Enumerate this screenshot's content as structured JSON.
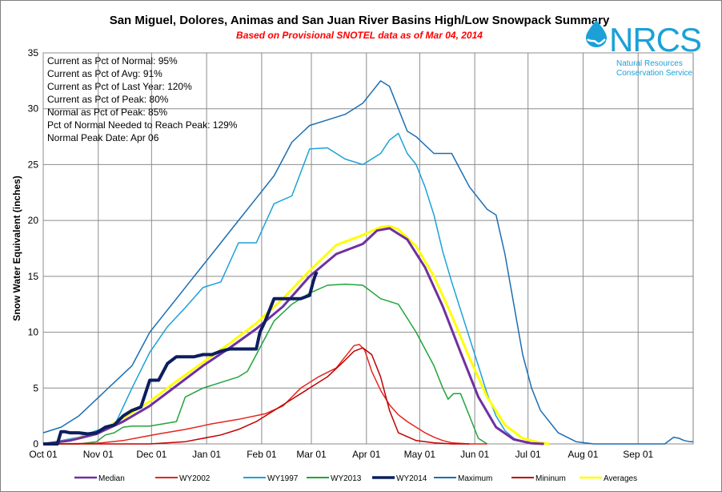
{
  "chart_data": {
    "type": "line",
    "title": "San Miguel, Dolores, Animas and San Juan River Basins High/Low Snowpack Summary",
    "subtitle": "Based on Provisional SNOTEL data as of Mar 04, 2014",
    "ylabel": "Snow Water Equivalent (inches)",
    "xlabel": "",
    "ylim": [
      0,
      35
    ],
    "yticks": [
      0,
      5,
      10,
      15,
      20,
      25,
      30,
      35
    ],
    "x_unit": "day of water year (Oct 01 = 0)",
    "xlim": [
      0,
      366
    ],
    "xtick_days": [
      0,
      31,
      61,
      92,
      123,
      151,
      182,
      212,
      243,
      273,
      304,
      335
    ],
    "xtick_labels": [
      "Oct 01",
      "Nov 01",
      "Dec 01",
      "Jan 01",
      "Feb 01",
      "Mar 01",
      "Apr 01",
      "May 01",
      "Jun 01",
      "Jul 01",
      "Aug 01",
      "Sep 01"
    ],
    "grid": true,
    "legend_position": "bottom",
    "stats": [
      "Current  as Pct of Normal: 95%",
      "Current  as Pct of Avg: 91%",
      "Current  as Pct of Last Year: 120%",
      "Current  as Pct of Peak: 80%",
      "Normal as Pct of Peak: 85%",
      "Pct of Normal Needed to Reach Peak: 129%",
      "Normal Peak Date: Apr 06"
    ],
    "series": [
      {
        "name": "Median",
        "color": "#7030a0",
        "width": 3,
        "x": [
          0,
          15,
          30,
          45,
          60,
          75,
          90,
          105,
          120,
          135,
          150,
          165,
          180,
          188,
          195,
          205,
          215,
          225,
          235,
          245,
          255,
          265,
          275,
          282
        ],
        "y": [
          0,
          0.3,
          0.9,
          2.0,
          3.4,
          5.2,
          7.0,
          8.6,
          10.3,
          12.3,
          15.0,
          17.0,
          17.9,
          19.1,
          19.3,
          18.3,
          15.8,
          12.3,
          8.2,
          4.2,
          1.5,
          0.4,
          0.05,
          0
        ]
      },
      {
        "name": "WY2002",
        "color": "#e4261e",
        "width": 1.5,
        "x": [
          0,
          30,
          45,
          55,
          65,
          80,
          95,
          110,
          125,
          135,
          145,
          155,
          165,
          175,
          178,
          181,
          185,
          190,
          195,
          200,
          205,
          210,
          215,
          220,
          225,
          230,
          240,
          250
        ],
        "y": [
          0,
          0.05,
          0.3,
          0.6,
          0.9,
          1.3,
          1.8,
          2.2,
          2.7,
          3.4,
          5.0,
          6.0,
          6.8,
          8.8,
          8.9,
          8.4,
          6.5,
          4.8,
          3.5,
          2.6,
          2.0,
          1.5,
          1.0,
          0.6,
          0.3,
          0.1,
          0,
          0
        ]
      },
      {
        "name": "WY1997",
        "color": "#1ba1d8",
        "width": 1.5,
        "x": [
          0,
          10,
          20,
          30,
          40,
          50,
          60,
          70,
          80,
          90,
          100,
          110,
          120,
          130,
          140,
          150,
          160,
          170,
          180,
          190,
          195,
          200,
          205,
          210,
          215,
          220,
          225,
          230,
          235,
          240,
          245,
          250,
          255,
          260,
          265,
          270,
          275,
          280
        ],
        "y": [
          0,
          0.3,
          0.6,
          1.2,
          1.6,
          5.0,
          8.2,
          10.5,
          12.2,
          14.0,
          14.5,
          18.0,
          18.0,
          21.5,
          22.2,
          26.4,
          26.5,
          25.5,
          25.0,
          26.0,
          27.2,
          27.8,
          26.0,
          25.0,
          23.0,
          20.5,
          17.2,
          14.5,
          12.0,
          9.5,
          7.0,
          4.5,
          2.5,
          1.2,
          0.5,
          0.2,
          0.05,
          0
        ]
      },
      {
        "name": "WY2013",
        "color": "#21a43a",
        "width": 1.5,
        "x": [
          0,
          20,
          30,
          35,
          40,
          45,
          50,
          55,
          60,
          75,
          80,
          90,
          100,
          110,
          115,
          120,
          130,
          140,
          150,
          160,
          170,
          180,
          190,
          200,
          210,
          220,
          225,
          228,
          231,
          235,
          240,
          245,
          250
        ],
        "y": [
          0,
          0,
          0.2,
          0.8,
          1.0,
          1.5,
          1.6,
          1.6,
          1.6,
          2.0,
          4.2,
          5.0,
          5.5,
          6.0,
          6.5,
          8.0,
          11.0,
          12.5,
          13.5,
          14.2,
          14.3,
          14.2,
          13.0,
          12.5,
          10.0,
          7.0,
          5.0,
          4.0,
          4.5,
          4.5,
          2.5,
          0.5,
          0
        ]
      },
      {
        "name": "WY2014",
        "color": "#0d1e5e",
        "width": 4,
        "x": [
          0,
          5,
          8,
          10,
          12,
          15,
          20,
          25,
          30,
          35,
          40,
          45,
          50,
          55,
          60,
          62,
          65,
          70,
          75,
          80,
          85,
          90,
          95,
          100,
          105,
          110,
          115,
          120,
          122,
          125,
          130,
          135,
          140,
          145,
          150,
          152,
          153,
          154
        ],
        "y": [
          0,
          0,
          0,
          1.1,
          1.1,
          1.0,
          1.0,
          0.9,
          1.0,
          1.5,
          1.7,
          2.5,
          3.0,
          3.3,
          5.7,
          5.7,
          5.7,
          7.2,
          7.8,
          7.8,
          7.8,
          8.0,
          8.0,
          8.3,
          8.5,
          8.5,
          8.5,
          8.5,
          10.0,
          11.0,
          13.0,
          13.0,
          13.0,
          13.0,
          13.3,
          14.5,
          15.0,
          15.4
        ]
      },
      {
        "name": "Maximum",
        "color": "#1d6eb1",
        "width": 1.5,
        "x": [
          0,
          10,
          20,
          30,
          40,
          50,
          60,
          70,
          80,
          90,
          100,
          110,
          120,
          130,
          140,
          150,
          160,
          170,
          180,
          185,
          190,
          195,
          200,
          205,
          210,
          220,
          230,
          240,
          250,
          255,
          260,
          265,
          270,
          275,
          280,
          290,
          300,
          310,
          320,
          330,
          340,
          350,
          355,
          358,
          361,
          364,
          366
        ],
        "y": [
          1.0,
          1.5,
          2.5,
          4.0,
          5.5,
          7.0,
          10.0,
          12.0,
          14.0,
          16.0,
          18.0,
          20.0,
          22.0,
          24.0,
          27.0,
          28.5,
          29.0,
          29.5,
          30.5,
          31.5,
          32.5,
          32.0,
          30.0,
          28.0,
          27.5,
          26.0,
          26.0,
          23.0,
          21.0,
          20.5,
          17.0,
          12.5,
          8.0,
          5.0,
          3.0,
          1.0,
          0.2,
          0,
          0,
          0,
          0,
          0,
          0.6,
          0.5,
          0.3,
          0.2,
          0.2
        ]
      },
      {
        "name": "Mininum",
        "color": "#c00000",
        "width": 1.5,
        "x": [
          0,
          50,
          60,
          70,
          80,
          90,
          100,
          110,
          120,
          130,
          140,
          150,
          160,
          170,
          175,
          180,
          185,
          190,
          195,
          200,
          210,
          220,
          230,
          240
        ],
        "y": [
          0,
          0,
          0,
          0.1,
          0.2,
          0.5,
          0.8,
          1.3,
          2.0,
          3.0,
          4.0,
          5.0,
          6.0,
          7.5,
          8.3,
          8.6,
          8.0,
          6.0,
          3.0,
          1.0,
          0.3,
          0.1,
          0,
          0
        ]
      },
      {
        "name": "Averages",
        "color": "#ffff00",
        "width": 3,
        "x": [
          0,
          15,
          30,
          45,
          60,
          75,
          90,
          105,
          120,
          135,
          150,
          165,
          180,
          190,
          195,
          200,
          210,
          220,
          230,
          240,
          250,
          260,
          270,
          280,
          285
        ],
        "y": [
          0,
          0.3,
          1.0,
          2.3,
          3.8,
          5.6,
          7.3,
          9.0,
          10.8,
          13.0,
          15.5,
          17.8,
          18.7,
          19.4,
          19.5,
          19.2,
          17.7,
          15.0,
          11.5,
          7.7,
          4.2,
          1.7,
          0.5,
          0.1,
          0
        ]
      }
    ]
  },
  "logo": {
    "name": "NRCS",
    "line1": "Natural Resources",
    "line2": "Conservation Service"
  }
}
